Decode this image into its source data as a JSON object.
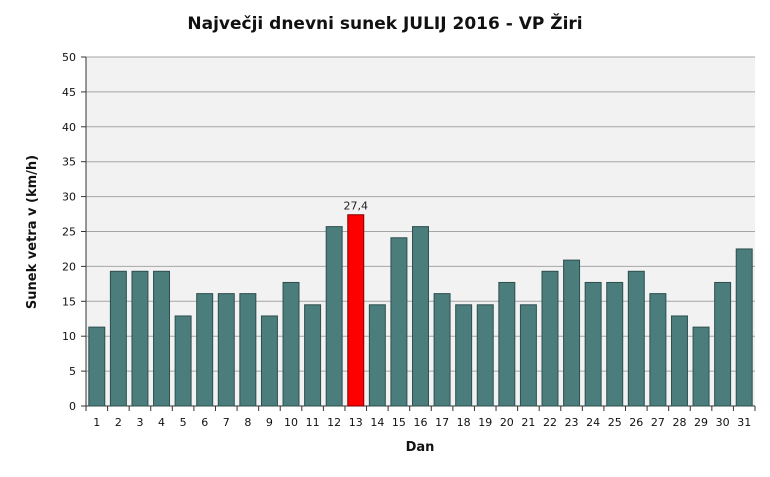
{
  "chart_data": {
    "type": "bar",
    "title": "Največji dnevni sunek JULIJ 2016 - VP Žiri",
    "xlabel": "Dan",
    "ylabel": "Sunek vetra v (km/h)",
    "ylim": [
      0,
      50
    ],
    "yticks": [
      "0",
      "5",
      "10",
      "15",
      "20",
      "25",
      "30",
      "35",
      "40",
      "45",
      "50"
    ],
    "grid": true,
    "categories": [
      "1",
      "2",
      "3",
      "4",
      "5",
      "6",
      "7",
      "8",
      "9",
      "10",
      "11",
      "12",
      "13",
      "14",
      "15",
      "16",
      "17",
      "18",
      "19",
      "20",
      "21",
      "22",
      "23",
      "24",
      "25",
      "26",
      "27",
      "28",
      "29",
      "30",
      "31"
    ],
    "series": [
      {
        "values": [
          11.3,
          19.3,
          19.3,
          19.3,
          12.9,
          16.1,
          16.1,
          16.1,
          12.9,
          17.7,
          14.5,
          25.7,
          27.4,
          14.5,
          24.1,
          25.7,
          16.1,
          14.5,
          14.5,
          17.7,
          14.5,
          19.3,
          20.9,
          17.7,
          17.7,
          19.3,
          16.1,
          12.9,
          11.3,
          17.7,
          22.5
        ]
      }
    ],
    "highlight_index": 12,
    "highlight_label": "27,4",
    "colors": {
      "bar": "#4a7d7b",
      "bar_stroke": "#2e4f4e",
      "highlight": "#ff0000",
      "highlight_stroke": "#7a0000",
      "plot_bg": "#f2f2f2",
      "grid": "#a6a6a6"
    }
  }
}
